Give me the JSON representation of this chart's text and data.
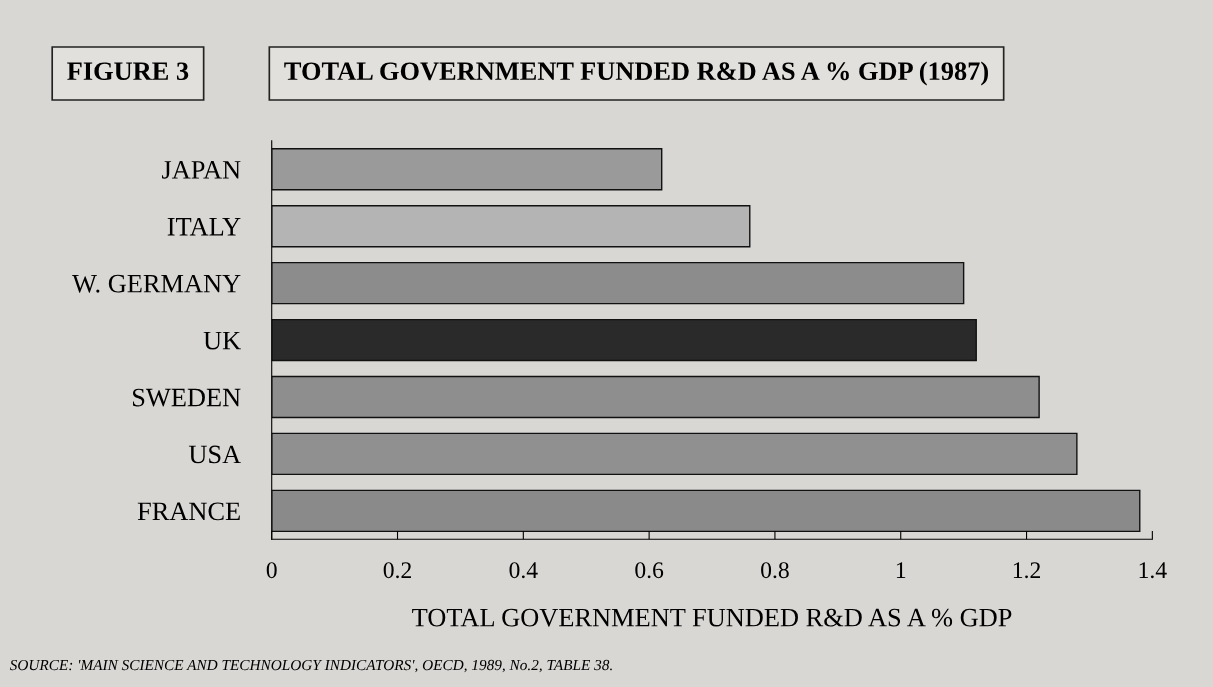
{
  "chart_data": {
    "type": "bar",
    "orientation": "horizontal",
    "title": "TOTAL GOVERNMENT FUNDED R&D AS A % GDP (1987)",
    "xlabel": "TOTAL GOVERNMENT FUNDED R&D AS A % GDP",
    "annotations": [
      "FIGURE 3",
      "SOURCE: 'MAIN SCIENCE AND TECHNOLOGY INDICATORS', OECD, 1989, No.2, TABLE 38."
    ],
    "categories": [
      "JAPAN",
      "ITALY",
      "W. GERMANY",
      "UK",
      "SWEDEN",
      "USA",
      "FRANCE"
    ],
    "values": [
      0.62,
      0.76,
      1.1,
      1.12,
      1.22,
      1.28,
      1.38
    ],
    "colors": [
      "#9a9a9a",
      "#b4b4b4",
      "#8c8c8c",
      "#2a2a2a",
      "#8e8e8e",
      "#909090",
      "#8a8a8a"
    ],
    "xlim": [
      0,
      1.4
    ],
    "xticks": [
      0,
      0.2,
      0.4,
      0.6,
      0.8,
      1,
      1.2,
      1.4
    ],
    "grid": false,
    "legend": false
  }
}
